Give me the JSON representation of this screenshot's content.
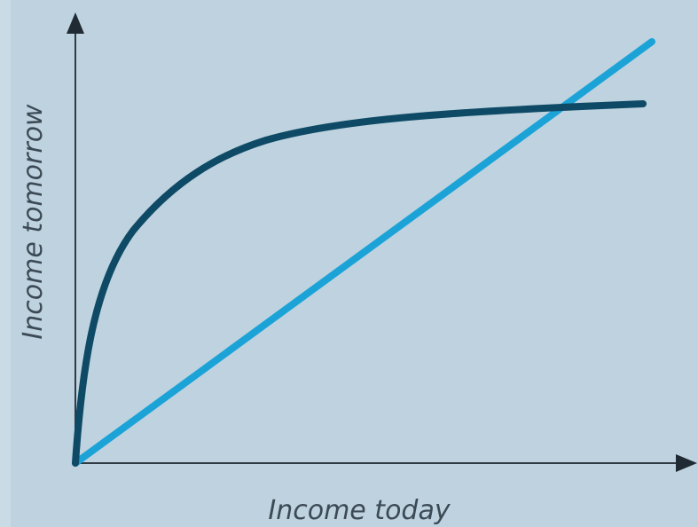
{
  "x_axis_label": "Income today",
  "y_axis_label": "Income tomorrow"
}
